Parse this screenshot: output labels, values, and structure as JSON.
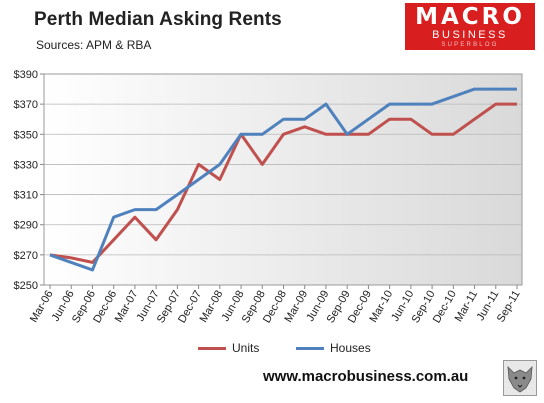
{
  "header": {
    "title": "Perth Median Asking Rents",
    "subtitle": "Sources: APM & RBA"
  },
  "logo": {
    "line1": "MACRO",
    "line2": "BUSINESS",
    "line3": "SUPERBLOG",
    "color": "#d81e1e",
    "emblem_icon": "wolf-icon"
  },
  "footer": {
    "url": "www.macrobusiness.com.au"
  },
  "chart_data": {
    "type": "line",
    "title": "Perth Median Asking Rents",
    "xlabel": "",
    "ylabel": "",
    "ylim": [
      250,
      390
    ],
    "yticks": [
      250,
      270,
      290,
      310,
      330,
      350,
      370,
      390
    ],
    "ytick_labels": [
      "$250",
      "$270",
      "$290",
      "$310",
      "$330",
      "$350",
      "$370",
      "$390"
    ],
    "x": [
      "Mar-06",
      "Jun-06",
      "Sep-06",
      "Dec-06",
      "Mar-07",
      "Jun-07",
      "Sep-07",
      "Dec-07",
      "Mar-08",
      "Jun-08",
      "Sep-08",
      "Dec-08",
      "Mar-09",
      "Jun-09",
      "Sep-09",
      "Dec-09",
      "Mar-10",
      "Jun-10",
      "Sep-10",
      "Dec-10",
      "Mar-11",
      "Jun-11",
      "Sep-11"
    ],
    "series": [
      {
        "name": "Units",
        "color": "#c0504d",
        "values": [
          270,
          268,
          265,
          280,
          295,
          280,
          300,
          330,
          320,
          350,
          330,
          350,
          355,
          350,
          350,
          350,
          360,
          360,
          350,
          350,
          360,
          370,
          370
        ]
      },
      {
        "name": "Houses",
        "color": "#4f81bd",
        "values": [
          270,
          265,
          260,
          295,
          300,
          300,
          310,
          320,
          330,
          350,
          350,
          360,
          360,
          370,
          350,
          360,
          370,
          370,
          370,
          375,
          380,
          380,
          380
        ]
      }
    ],
    "grid": true,
    "legend": "bottom",
    "background": "gradient white-to-grey"
  }
}
